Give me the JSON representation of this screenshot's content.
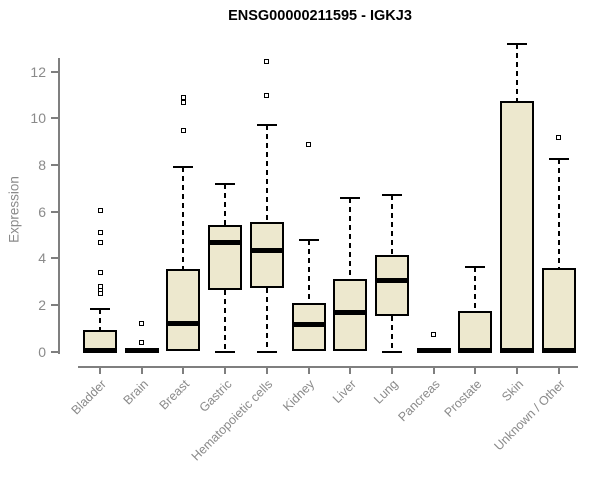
{
  "title": "ENSG00000211595 - IGKJ3",
  "axes": {
    "y_label": "Expression",
    "y_ticks": [
      0,
      2,
      4,
      6,
      8,
      10,
      12
    ],
    "x_labels": [
      "Bladder",
      "Brain",
      "Breast",
      "Gastric",
      "Hematopoietic cells",
      "Kidney",
      "Liver",
      "Lung",
      "Pancreas",
      "Prostate",
      "Skin",
      "Unknown / Other"
    ]
  },
  "colors": {
    "box_fill": "#EDE8CE",
    "box_border": "#000000",
    "axis_gray": "#7f7f7f",
    "label_gray": "#8a8a8a",
    "title_color": "#000000",
    "background": "#ffffff"
  },
  "chart_data": {
    "type": "boxplot",
    "title": "ENSG00000211595 - IGKJ3",
    "xlabel": "",
    "ylabel": "Expression",
    "ylim": [
      0,
      13.4
    ],
    "yticks": [
      0,
      2,
      4,
      6,
      8,
      10,
      12
    ],
    "grid": false,
    "categories": [
      "Bladder",
      "Brain",
      "Breast",
      "Gastric",
      "Hematopoietic cells",
      "Kidney",
      "Liver",
      "Lung",
      "Pancreas",
      "Prostate",
      "Skin",
      "Unknown / Other"
    ],
    "series": [
      {
        "name": "Bladder",
        "low": 0,
        "q1": 0,
        "median": 0.05,
        "q3": 0.95,
        "high": 1.85,
        "outliers": [
          2.5,
          2.65,
          2.8,
          3.4,
          4.7,
          5.1,
          6.05
        ]
      },
      {
        "name": "Brain",
        "low": 0,
        "q1": 0,
        "median": 0.04,
        "q3": 0.1,
        "high": 0.1,
        "outliers": [
          0.4,
          1.2
        ]
      },
      {
        "name": "Breast",
        "low": 0.05,
        "q1": 0.05,
        "median": 1.2,
        "q3": 3.55,
        "high": 7.9,
        "outliers": [
          9.5,
          10.7,
          10.9
        ]
      },
      {
        "name": "Gastric",
        "low": 0,
        "q1": 2.65,
        "median": 4.7,
        "q3": 5.45,
        "high": 7.2,
        "outliers": []
      },
      {
        "name": "Hematopoietic cells",
        "low": 0,
        "q1": 2.75,
        "median": 4.35,
        "q3": 5.55,
        "high": 9.7,
        "outliers": [
          11.0,
          12.45
        ]
      },
      {
        "name": "Kidney",
        "low": 0.05,
        "q1": 0.05,
        "median": 1.15,
        "q3": 2.1,
        "high": 4.8,
        "outliers": [
          8.9
        ]
      },
      {
        "name": "Liver",
        "low": 0.02,
        "q1": 0.02,
        "median": 1.7,
        "q3": 3.1,
        "high": 6.6,
        "outliers": []
      },
      {
        "name": "Lung",
        "low": 0,
        "q1": 1.55,
        "median": 3.05,
        "q3": 4.15,
        "high": 6.7,
        "outliers": []
      },
      {
        "name": "Pancreas",
        "low": 0,
        "q1": 0,
        "median": 0.04,
        "q3": 0.1,
        "high": 0.1,
        "outliers": [
          0.75
        ]
      },
      {
        "name": "Prostate",
        "low": 0,
        "q1": 0,
        "median": 0.05,
        "q3": 1.75,
        "high": 3.65,
        "outliers": []
      },
      {
        "name": "Skin",
        "low": 0,
        "q1": 0,
        "median": 0.05,
        "q3": 10.75,
        "high": 13.2,
        "outliers": []
      },
      {
        "name": "Unknown / Other",
        "low": 0,
        "q1": 0,
        "median": 0.05,
        "q3": 3.6,
        "high": 8.25,
        "outliers": [
          9.2
        ]
      }
    ]
  }
}
